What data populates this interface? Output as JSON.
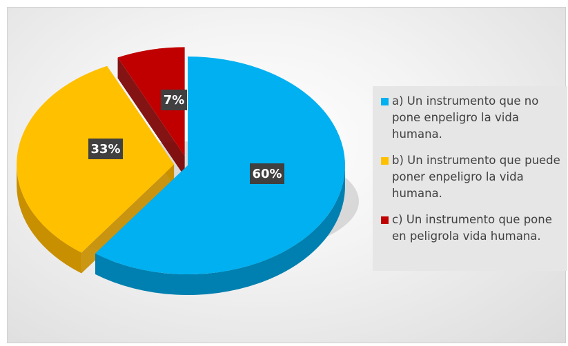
{
  "chart_data": {
    "type": "pie",
    "three_d": true,
    "slices": [
      {
        "label": "a) Un instrumento que no pone enpeligro la vida humana.",
        "value": 60,
        "data_label": "60%",
        "color": "#00B0F0",
        "side_color": "#0080B0"
      },
      {
        "label": "b) Un instrumento que puede poner enpeligro la vida humana.",
        "value": 33,
        "data_label": "33%",
        "color": "#FFC000",
        "side_color": "#C88F00"
      },
      {
        "label": "c) Un instrumento que pone en peligrola vida humana.",
        "value": 7,
        "data_label": "7%",
        "color": "#C00000",
        "side_color": "#7A0000"
      }
    ],
    "legend_position": "right"
  }
}
